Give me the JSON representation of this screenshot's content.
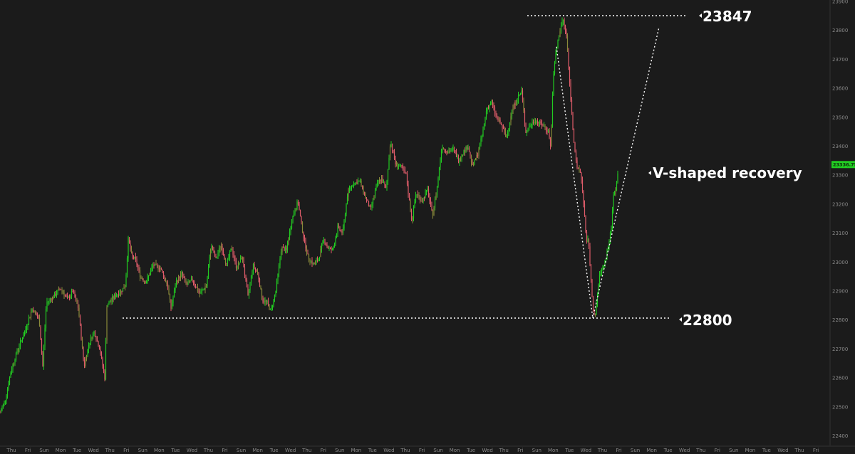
{
  "chart_data": {
    "type": "candlestick",
    "title": "",
    "xlabel": "",
    "ylabel": "",
    "ylim": [
      22380,
      23900
    ],
    "y_ticks": [
      22400,
      22500,
      22600,
      22700,
      22800,
      22900,
      23000,
      23100,
      23200,
      23300,
      23400,
      23500,
      23600,
      23700,
      23800,
      23900
    ],
    "x_day_labels": [
      "Thu",
      "Fri",
      "Sun",
      "Mon",
      "Tue",
      "Wed",
      "Thu",
      "Fri",
      "Sun",
      "Mon",
      "Tue",
      "Wed",
      "Thu",
      "Fri",
      "Sun",
      "Mon",
      "Tue",
      "Wed",
      "Thu",
      "Fri",
      "Sun",
      "Mon",
      "Tue",
      "Wed",
      "Thu",
      "Fri",
      "Sun",
      "Mon",
      "Tue",
      "Wed",
      "Thu",
      "Fri",
      "Sun",
      "Mon",
      "Tue",
      "Wed",
      "Thu",
      "Fri",
      "Sun",
      "Mon",
      "Tue",
      "Wed",
      "Thu",
      "Fri",
      "Sun",
      "Mon",
      "Tue",
      "Wed",
      "Thu",
      "Fri"
    ],
    "last_price": "23336.75",
    "path": [
      [
        0,
        22480
      ],
      [
        8,
        22530
      ],
      [
        15,
        22620
      ],
      [
        25,
        22700
      ],
      [
        35,
        22760
      ],
      [
        45,
        22840
      ],
      [
        55,
        22800
      ],
      [
        60,
        22640
      ],
      [
        65,
        22860
      ],
      [
        75,
        22880
      ],
      [
        85,
        22910
      ],
      [
        95,
        22870
      ],
      [
        102,
        22900
      ],
      [
        110,
        22840
      ],
      [
        118,
        22640
      ],
      [
        125,
        22720
      ],
      [
        132,
        22760
      ],
      [
        140,
        22700
      ],
      [
        147,
        22600
      ],
      [
        150,
        22850
      ],
      [
        160,
        22880
      ],
      [
        170,
        22900
      ],
      [
        176,
        22920
      ],
      [
        180,
        23080
      ],
      [
        185,
        23020
      ],
      [
        190,
        23010
      ],
      [
        197,
        22950
      ],
      [
        205,
        22930
      ],
      [
        215,
        22990
      ],
      [
        225,
        22980
      ],
      [
        235,
        22920
      ],
      [
        240,
        22840
      ],
      [
        247,
        22930
      ],
      [
        255,
        22960
      ],
      [
        262,
        22920
      ],
      [
        270,
        22940
      ],
      [
        280,
        22890
      ],
      [
        290,
        22920
      ],
      [
        296,
        23060
      ],
      [
        303,
        23010
      ],
      [
        310,
        23060
      ],
      [
        318,
        22990
      ],
      [
        325,
        23050
      ],
      [
        332,
        22980
      ],
      [
        340,
        23020
      ],
      [
        348,
        22880
      ],
      [
        355,
        22990
      ],
      [
        362,
        22960
      ],
      [
        368,
        22870
      ],
      [
        375,
        22860
      ],
      [
        380,
        22830
      ],
      [
        387,
        22900
      ],
      [
        395,
        23050
      ],
      [
        402,
        23040
      ],
      [
        410,
        23150
      ],
      [
        418,
        23210
      ],
      [
        425,
        23100
      ],
      [
        432,
        23020
      ],
      [
        440,
        22990
      ],
      [
        447,
        23010
      ],
      [
        454,
        23080
      ],
      [
        460,
        23050
      ],
      [
        467,
        23040
      ],
      [
        474,
        23120
      ],
      [
        481,
        23100
      ],
      [
        488,
        23240
      ],
      [
        495,
        23270
      ],
      [
        505,
        23280
      ],
      [
        512,
        23230
      ],
      [
        520,
        23180
      ],
      [
        528,
        23260
      ],
      [
        535,
        23290
      ],
      [
        542,
        23250
      ],
      [
        548,
        23420
      ],
      [
        555,
        23340
      ],
      [
        562,
        23330
      ],
      [
        570,
        23300
      ],
      [
        578,
        23140
      ],
      [
        584,
        23240
      ],
      [
        592,
        23210
      ],
      [
        600,
        23250
      ],
      [
        607,
        23160
      ],
      [
        613,
        23250
      ],
      [
        620,
        23400
      ],
      [
        628,
        23380
      ],
      [
        636,
        23390
      ],
      [
        644,
        23350
      ],
      [
        650,
        23380
      ],
      [
        657,
        23400
      ],
      [
        663,
        23330
      ],
      [
        670,
        23370
      ],
      [
        677,
        23440
      ],
      [
        683,
        23530
      ],
      [
        690,
        23550
      ],
      [
        697,
        23500
      ],
      [
        704,
        23470
      ],
      [
        711,
        23430
      ],
      [
        718,
        23520
      ],
      [
        725,
        23560
      ],
      [
        732,
        23590
      ],
      [
        738,
        23450
      ],
      [
        744,
        23470
      ],
      [
        750,
        23490
      ],
      [
        757,
        23480
      ],
      [
        763,
        23470
      ],
      [
        770,
        23450
      ],
      [
        773,
        23390
      ],
      [
        776,
        23620
      ],
      [
        780,
        23720
      ],
      [
        785,
        23790
      ],
      [
        790,
        23840
      ],
      [
        795,
        23780
      ],
      [
        800,
        23600
      ],
      [
        805,
        23430
      ],
      [
        810,
        23320
      ],
      [
        815,
        23310
      ],
      [
        820,
        23180
      ],
      [
        823,
        23060
      ],
      [
        826,
        23080
      ],
      [
        829,
        22950
      ],
      [
        832,
        22850
      ],
      [
        835,
        22800
      ],
      [
        838,
        22880
      ],
      [
        842,
        22960
      ],
      [
        846,
        22980
      ],
      [
        850,
        23010
      ],
      [
        854,
        23060
      ],
      [
        858,
        23120
      ],
      [
        861,
        23230
      ],
      [
        865,
        23260
      ],
      [
        868,
        23336
      ]
    ],
    "annotations": {
      "high_label": "23847",
      "low_label": "22800",
      "pattern_label": "V-shaped recovery"
    },
    "colors": {
      "background": "#1b1b1b",
      "up": "#22cc22",
      "down": "#e05c6a",
      "mixed": "#8a8a3a",
      "axis_text": "#8a8a8a",
      "guide": "#ffffff",
      "last_price_badge": "#22cc22"
    }
  }
}
